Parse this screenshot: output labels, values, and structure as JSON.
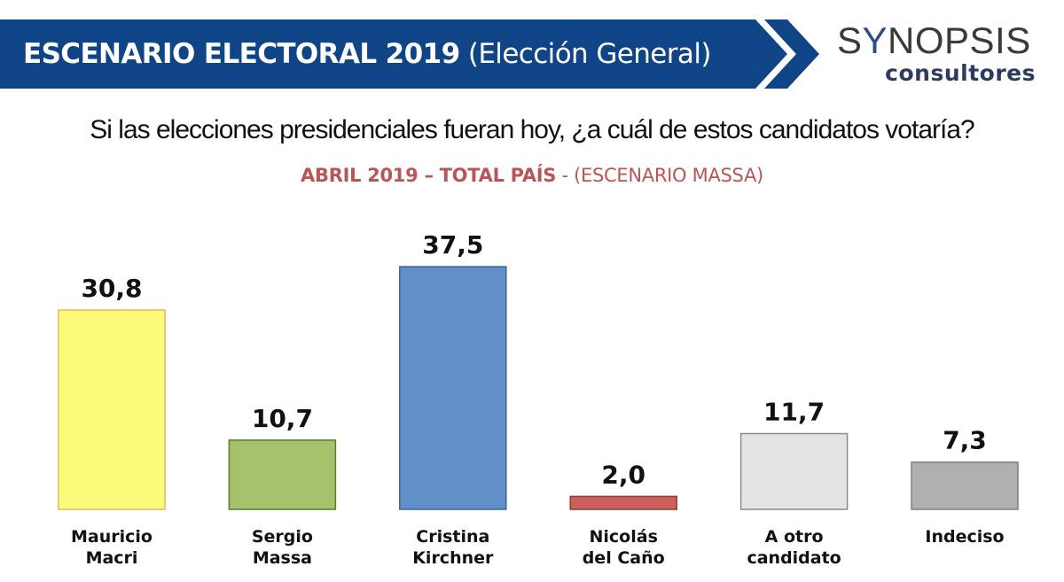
{
  "header": {
    "title_bold": "ESCENARIO ELECTORAL 2019",
    "title_normal": "(Elección General)",
    "banner_color": "#0f4486"
  },
  "logo": {
    "main_prefix": "S",
    "main_y": "Y",
    "main_suffix": "NOPSIS",
    "sub": "consultores"
  },
  "question": "Si las elecciones presidenciales fueran hoy, ¿a cuál de estos candidatos votaría?",
  "subtitle": {
    "bold": "ABRIL 2019 – TOTAL PAÍS",
    "normal": " - (ESCENARIO MASSA)"
  },
  "chart_data": {
    "type": "bar",
    "title": "ABRIL 2019 – TOTAL PAÍS - (ESCENARIO MASSA)",
    "xlabel": "",
    "ylabel": "",
    "ylim": [
      0,
      40
    ],
    "grid": false,
    "legend": "none",
    "categories": [
      [
        "Mauricio",
        "Macri"
      ],
      [
        "Sergio",
        "Massa"
      ],
      [
        "Cristina",
        "Kirchner"
      ],
      [
        "Nicolás",
        "del Caño"
      ],
      [
        "A otro",
        "candidato"
      ],
      [
        "Indeciso"
      ]
    ],
    "values": [
      30.8,
      10.7,
      37.5,
      2.0,
      11.7,
      7.3
    ],
    "value_labels": [
      "30,8",
      "10,7",
      "37,5",
      "2,0",
      "11,7",
      "7,3"
    ],
    "colors": [
      "#fffb7a",
      "#a5c26b",
      "#5f8fc6",
      "#cd605a",
      "#e3e3e3",
      "#b0b0b0"
    ],
    "border_colors": [
      "#e8b565",
      "#5f7a2f",
      "#3d6796",
      "#8e3a36",
      "#8a8a8a",
      "#7f7f7f"
    ]
  }
}
